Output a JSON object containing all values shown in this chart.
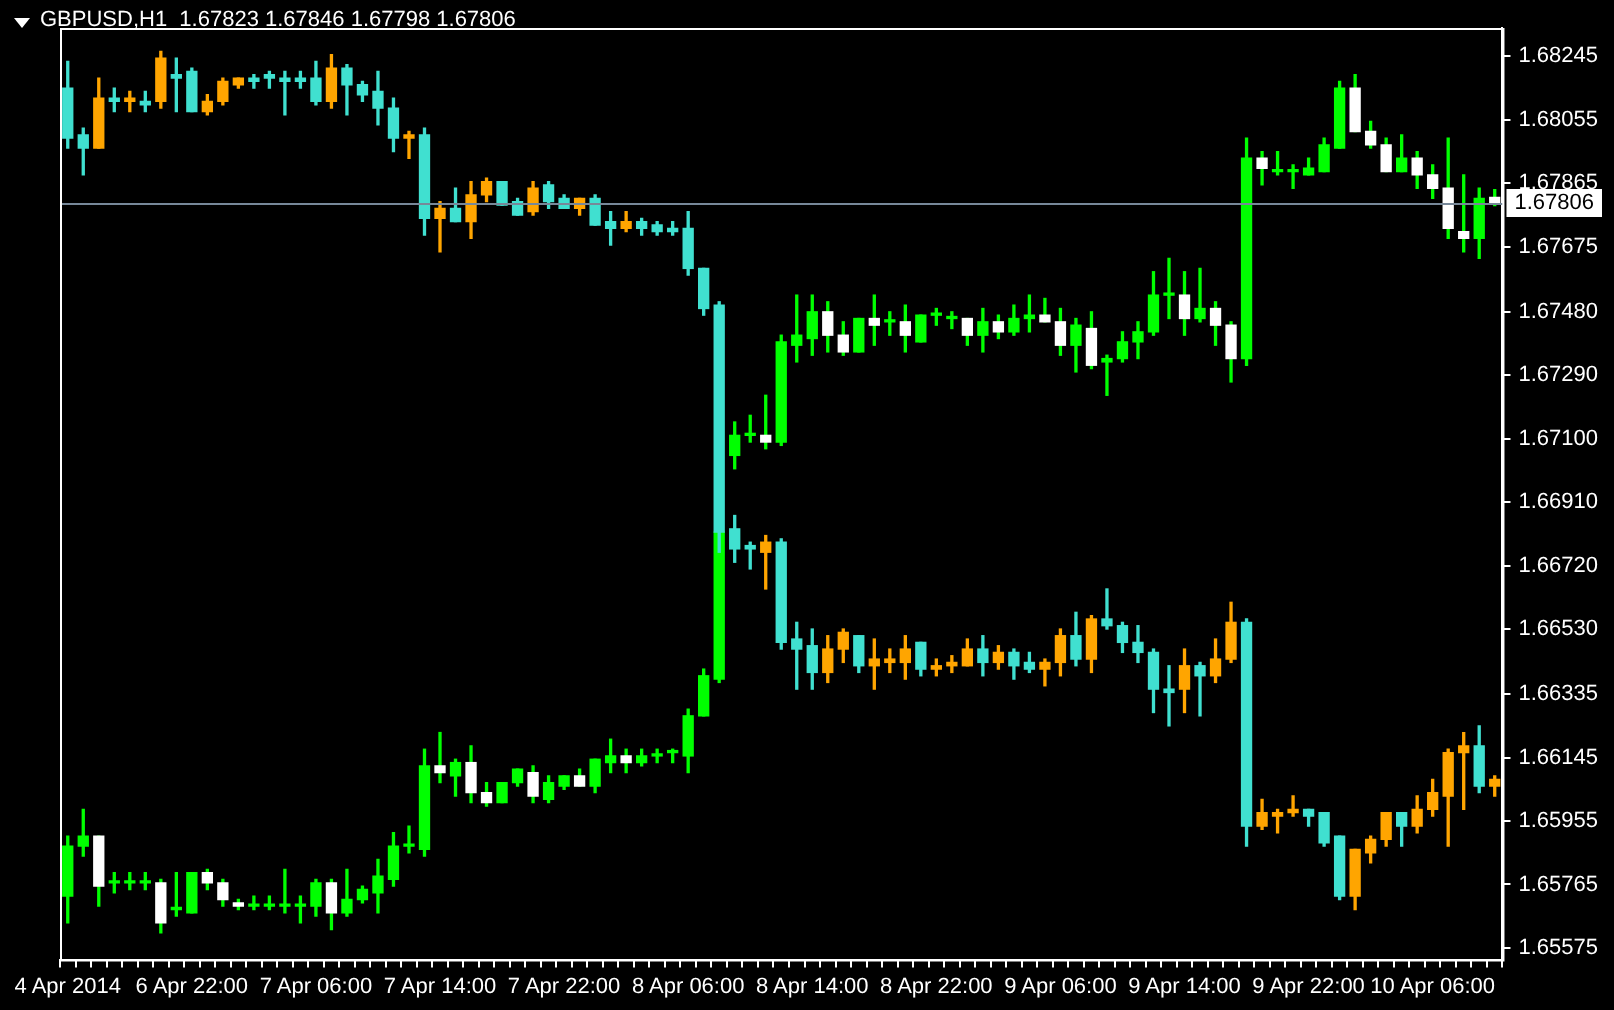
{
  "chart_data": {
    "type": "candlestick",
    "title": "GBPUSD,H1  1.67823 1.67846 1.67798 1.67806",
    "categories": [
      "4 Apr 2014",
      null,
      null,
      null,
      null,
      null,
      null,
      null,
      "6 Apr 22:00",
      null,
      null,
      null,
      null,
      null,
      null,
      null,
      "7 Apr 06:00",
      null,
      null,
      null,
      null,
      null,
      null,
      null,
      "7 Apr 14:00",
      null,
      null,
      null,
      null,
      null,
      null,
      null,
      "7 Apr 22:00",
      null,
      null,
      null,
      null,
      null,
      null,
      null,
      "8 Apr 06:00",
      null,
      null,
      null,
      null,
      null,
      null,
      null,
      "8 Apr 14:00",
      null,
      null,
      null,
      null,
      null,
      null,
      null,
      "8 Apr 22:00",
      null,
      null,
      null,
      null,
      null,
      null,
      null,
      "9 Apr 06:00",
      null,
      null,
      null,
      null,
      null,
      null,
      null,
      "9 Apr 14:00",
      null,
      null,
      null,
      null,
      null,
      null,
      null,
      "9 Apr 22:00",
      null,
      null,
      null,
      null,
      null,
      null,
      null,
      "10 Apr 06:00",
      null,
      null,
      null,
      null
    ],
    "series": [
      {
        "ohlc": [
          [
            1.6815,
            1.6823,
            1.6797,
            1.68
          ],
          [
            1.6801,
            1.6803,
            1.6789,
            1.6797
          ],
          [
            1.6797,
            1.6818,
            1.6797,
            1.6812
          ],
          [
            1.6812,
            1.6815,
            1.6808,
            1.6811
          ],
          [
            1.6811,
            1.6814,
            1.6808,
            1.6812
          ],
          [
            1.6811,
            1.6814,
            1.6808,
            1.681
          ],
          [
            1.6811,
            1.6826,
            1.6809,
            1.6824
          ],
          [
            1.6819,
            1.6824,
            1.6808,
            1.6818
          ],
          [
            1.682,
            1.6821,
            1.6808,
            1.6808
          ],
          [
            1.6808,
            1.6813,
            1.6807,
            1.6811
          ],
          [
            1.6811,
            1.6818,
            1.681,
            1.6817
          ],
          [
            1.6816,
            1.6818,
            1.6815,
            1.6818
          ],
          [
            1.6818,
            1.6819,
            1.6815,
            1.6817
          ],
          [
            1.6819,
            1.682,
            1.6815,
            1.6818
          ],
          [
            1.6818,
            1.682,
            1.6807,
            1.6817
          ],
          [
            1.6818,
            1.682,
            1.6815,
            1.6817
          ],
          [
            1.6818,
            1.6823,
            1.681,
            1.6811
          ],
          [
            1.6811,
            1.6825,
            1.6809,
            1.6821
          ],
          [
            1.6821,
            1.6822,
            1.6807,
            1.6816
          ],
          [
            1.6816,
            1.6817,
            1.6811,
            1.6813
          ],
          [
            1.6814,
            1.682,
            1.6804,
            1.6809
          ],
          [
            1.6809,
            1.6812,
            1.6796,
            1.68
          ],
          [
            1.68,
            1.6802,
            1.6794,
            1.6801
          ],
          [
            1.6801,
            1.6803,
            1.6771,
            1.6776
          ],
          [
            1.6776,
            1.6781,
            1.6766,
            1.6779
          ],
          [
            1.6779,
            1.6785,
            1.6775,
            1.6775
          ],
          [
            1.6775,
            1.6787,
            1.677,
            1.6783
          ],
          [
            1.6783,
            1.6788,
            1.6781,
            1.6787
          ],
          [
            1.6787,
            1.6787,
            1.678,
            1.678
          ],
          [
            1.6781,
            1.6782,
            1.6777,
            1.6777
          ],
          [
            1.6778,
            1.6787,
            1.6777,
            1.6785
          ],
          [
            1.6786,
            1.6787,
            1.6779,
            1.6781
          ],
          [
            1.6782,
            1.6783,
            1.6779,
            1.6779
          ],
          [
            1.6779,
            1.6782,
            1.6777,
            1.6782
          ],
          [
            1.6782,
            1.6783,
            1.6774,
            1.6774
          ],
          [
            1.6775,
            1.6778,
            1.6768,
            1.6773
          ],
          [
            1.6773,
            1.6778,
            1.6772,
            1.6775
          ],
          [
            1.6775,
            1.6776,
            1.6771,
            1.6773
          ],
          [
            1.6774,
            1.6775,
            1.6771,
            1.6772
          ],
          [
            1.6773,
            1.6775,
            1.6771,
            1.6772
          ],
          [
            1.6773,
            1.6778,
            1.6759,
            1.6761
          ],
          [
            1.6761,
            1.6761,
            1.6747,
            1.6749
          ],
          [
            1.675,
            1.6751,
            1.6676,
            1.6682
          ],
          [
            1.6683,
            1.6687,
            1.6673,
            1.6677
          ],
          [
            1.6678,
            1.6679,
            1.6671,
            1.6677
          ],
          [
            1.6676,
            1.6681,
            1.6665,
            1.6679
          ],
          [
            1.6679,
            1.668,
            1.6647,
            1.6649
          ],
          [
            1.665,
            1.6655,
            1.6635,
            1.6647
          ],
          [
            1.6648,
            1.6653,
            1.6635,
            1.664
          ],
          [
            1.664,
            1.6651,
            1.6637,
            1.6647
          ],
          [
            1.6647,
            1.6653,
            1.6643,
            1.6652
          ],
          [
            1.6651,
            1.6651,
            1.664,
            1.6642
          ],
          [
            1.6642,
            1.665,
            1.6635,
            1.6644
          ],
          [
            1.6643,
            1.6647,
            1.664,
            1.6644
          ],
          [
            1.6643,
            1.6651,
            1.6638,
            1.6647
          ],
          [
            1.6649,
            1.6649,
            1.6639,
            1.6641
          ],
          [
            1.6641,
            1.6644,
            1.6639,
            1.6642
          ],
          [
            1.6642,
            1.6645,
            1.664,
            1.6643
          ],
          [
            1.6642,
            1.665,
            1.6642,
            1.6647
          ],
          [
            1.6647,
            1.6651,
            1.6639,
            1.6643
          ],
          [
            1.6643,
            1.6648,
            1.6641,
            1.6646
          ],
          [
            1.6646,
            1.6647,
            1.6638,
            1.6642
          ],
          [
            1.6643,
            1.6646,
            1.664,
            1.6641
          ],
          [
            1.6641,
            1.6644,
            1.6636,
            1.6643
          ],
          [
            1.6643,
            1.6653,
            1.6639,
            1.6651
          ],
          [
            1.6651,
            1.6658,
            1.6642,
            1.6644
          ],
          [
            1.6644,
            1.6657,
            1.664,
            1.6656
          ],
          [
            1.6656,
            1.6665,
            1.6653,
            1.6654
          ],
          [
            1.6654,
            1.6655,
            1.6646,
            1.6649
          ],
          [
            1.6649,
            1.6654,
            1.6643,
            1.6646
          ],
          [
            1.6646,
            1.6647,
            1.6628,
            1.6635
          ],
          [
            1.6635,
            1.6642,
            1.6624,
            1.6634
          ],
          [
            1.6635,
            1.6647,
            1.6628,
            1.6642
          ],
          [
            1.6642,
            1.6643,
            1.6627,
            1.6639
          ],
          [
            1.6639,
            1.665,
            1.6637,
            1.6644
          ],
          [
            1.6644,
            1.6661,
            1.6643,
            1.6655
          ],
          [
            1.6655,
            1.6656,
            1.6588,
            1.6594
          ],
          [
            1.6594,
            1.6602,
            1.6593,
            1.6598
          ],
          [
            1.6597,
            1.6599,
            1.6592,
            1.6598
          ],
          [
            1.6598,
            1.6603,
            1.6597,
            1.6599
          ],
          [
            1.6599,
            1.6599,
            1.6594,
            1.6597
          ],
          [
            1.6598,
            1.6598,
            1.6588,
            1.6589
          ],
          [
            1.6591,
            1.6591,
            1.6572,
            1.6573
          ],
          [
            1.6573,
            1.6587,
            1.6569,
            1.6587
          ],
          [
            1.6586,
            1.6591,
            1.6583,
            1.659
          ],
          [
            1.659,
            1.6598,
            1.6588,
            1.6598
          ],
          [
            1.6598,
            1.6598,
            1.6588,
            1.6594
          ],
          [
            1.6594,
            1.6603,
            1.6592,
            1.6599
          ],
          [
            1.6599,
            1.6608,
            1.6597,
            1.6604
          ],
          [
            1.6603,
            1.6617,
            1.6588,
            1.6616
          ],
          [
            1.6616,
            1.6622,
            1.6599,
            1.6618
          ],
          [
            1.6618,
            1.6624,
            1.6604,
            1.6606
          ],
          [
            1.6606,
            1.6609,
            1.6603,
            1.6608
          ]
        ],
        "colors": [
          "#40e0d0",
          "#40e0d0",
          "#ffa500",
          "#40e0d0",
          "#ffa500",
          "#40e0d0",
          "#ffa500",
          "#40e0d0",
          "#40e0d0",
          "#ffa500",
          "#ffa500",
          "#ffa500",
          "#40e0d0",
          "#40e0d0",
          "#40e0d0",
          "#40e0d0",
          "#40e0d0",
          "#ffa500",
          "#40e0d0",
          "#40e0d0",
          "#40e0d0",
          "#40e0d0",
          "#ffa500",
          "#40e0d0",
          "#ffa500",
          "#40e0d0",
          "#ffa500",
          "#ffa500",
          "#40e0d0",
          "#40e0d0",
          "#ffa500",
          "#40e0d0",
          "#40e0d0",
          "#ffa500",
          "#40e0d0",
          "#40e0d0",
          "#ffa500",
          "#40e0d0",
          "#40e0d0",
          "#40e0d0",
          "#40e0d0",
          "#40e0d0",
          "#40e0d0",
          "#40e0d0",
          "#40e0d0",
          "#ffa500",
          "#40e0d0",
          "#40e0d0",
          "#40e0d0",
          "#ffa500",
          "#ffa500",
          "#40e0d0",
          "#ffa500",
          "#ffa500",
          "#ffa500",
          "#40e0d0",
          "#ffa500",
          "#ffa500",
          "#ffa500",
          "#40e0d0",
          "#ffa500",
          "#40e0d0",
          "#40e0d0",
          "#ffa500",
          "#ffa500",
          "#40e0d0",
          "#ffa500",
          "#40e0d0",
          "#40e0d0",
          "#40e0d0",
          "#40e0d0",
          "#40e0d0",
          "#ffa500",
          "#40e0d0",
          "#ffa500",
          "#ffa500",
          "#40e0d0",
          "#ffa500",
          "#ffa500",
          "#ffa500",
          "#40e0d0",
          "#40e0d0",
          "#40e0d0",
          "#ffa500",
          "#ffa500",
          "#ffa500",
          "#40e0d0",
          "#ffa500",
          "#ffa500",
          "#ffa500",
          "#ffa500",
          "#40e0d0",
          "#ffa500"
        ]
      },
      {
        "color": "#00ff00",
        "ohlc": [
          [
            1.6573,
            1.6591,
            1.6565,
            1.6588
          ],
          [
            1.6588,
            1.6599,
            1.6585,
            1.6591
          ],
          [
            1.6591,
            1.6591,
            1.657,
            1.6576
          ],
          [
            1.6577,
            1.658,
            1.6574,
            1.6577
          ],
          [
            1.6577,
            1.658,
            1.6575,
            1.6577
          ],
          [
            1.6577,
            1.658,
            1.6575,
            1.6577
          ],
          [
            1.6577,
            1.6578,
            1.6562,
            1.6565
          ],
          [
            1.6569,
            1.658,
            1.6567,
            1.6569
          ],
          [
            1.6568,
            1.658,
            1.6568,
            1.658
          ],
          [
            1.658,
            1.6581,
            1.6575,
            1.6577
          ],
          [
            1.6577,
            1.6578,
            1.657,
            1.6572
          ],
          [
            1.6571,
            1.6572,
            1.6569,
            1.657
          ],
          [
            1.657,
            1.6573,
            1.6569,
            1.657
          ],
          [
            1.657,
            1.6573,
            1.6569,
            1.657
          ],
          [
            1.657,
            1.6581,
            1.6568,
            1.657
          ],
          [
            1.657,
            1.6573,
            1.6565,
            1.657
          ],
          [
            1.657,
            1.6578,
            1.6567,
            1.6577
          ],
          [
            1.6577,
            1.6578,
            1.6563,
            1.6568
          ],
          [
            1.6568,
            1.6581,
            1.6567,
            1.6572
          ],
          [
            1.6572,
            1.6576,
            1.6571,
            1.6575
          ],
          [
            1.6574,
            1.6584,
            1.6568,
            1.6579
          ],
          [
            1.6578,
            1.6592,
            1.6576,
            1.6588
          ],
          [
            1.6588,
            1.6594,
            1.6586,
            1.6588
          ],
          [
            1.6587,
            1.6617,
            1.6585,
            1.6612
          ],
          [
            1.6612,
            1.6622,
            1.6607,
            1.661
          ],
          [
            1.6609,
            1.6614,
            1.6603,
            1.6613
          ],
          [
            1.6613,
            1.6618,
            1.6601,
            1.6604
          ],
          [
            1.6604,
            1.6607,
            1.66,
            1.6601
          ],
          [
            1.6601,
            1.6607,
            1.6601,
            1.6607
          ],
          [
            1.6607,
            1.6611,
            1.6606,
            1.6611
          ],
          [
            1.661,
            1.6612,
            1.6601,
            1.6603
          ],
          [
            1.6602,
            1.6609,
            1.6601,
            1.6607
          ],
          [
            1.6606,
            1.6609,
            1.6605,
            1.6609
          ],
          [
            1.6609,
            1.6611,
            1.6606,
            1.6606
          ],
          [
            1.6606,
            1.6614,
            1.6604,
            1.6614
          ],
          [
            1.6613,
            1.662,
            1.661,
            1.6615
          ],
          [
            1.6615,
            1.6617,
            1.661,
            1.6613
          ],
          [
            1.6613,
            1.6617,
            1.6612,
            1.6615
          ],
          [
            1.6615,
            1.6617,
            1.6613,
            1.6615
          ],
          [
            1.6616,
            1.6617,
            1.6613,
            1.6616
          ],
          [
            1.6615,
            1.6629,
            1.661,
            1.6627
          ],
          [
            1.6627,
            1.6641,
            1.6627,
            1.6639
          ],
          [
            1.6638,
            1.6682,
            1.6637,
            1.6682
          ],
          [
            1.6705,
            1.6715,
            1.6701,
            1.6711
          ],
          [
            1.6711,
            1.6717,
            1.6709,
            1.6711
          ],
          [
            1.6711,
            1.6723,
            1.6707,
            1.6709
          ],
          [
            1.6709,
            1.6741,
            1.6708,
            1.6739
          ],
          [
            1.6738,
            1.6753,
            1.6733,
            1.6741
          ],
          [
            1.674,
            1.6753,
            1.6735,
            1.6748
          ],
          [
            1.6748,
            1.6751,
            1.6736,
            1.6741
          ],
          [
            1.6741,
            1.6745,
            1.6735,
            1.6736
          ],
          [
            1.6736,
            1.6746,
            1.6736,
            1.6746
          ],
          [
            1.6746,
            1.6753,
            1.6738,
            1.6744
          ],
          [
            1.6745,
            1.6748,
            1.6741,
            1.6745
          ],
          [
            1.6745,
            1.675,
            1.6736,
            1.6741
          ],
          [
            1.6739,
            1.6747,
            1.6739,
            1.6747
          ],
          [
            1.6747,
            1.6749,
            1.6744,
            1.6747
          ],
          [
            1.6746,
            1.6748,
            1.6743,
            1.6746
          ],
          [
            1.6746,
            1.6746,
            1.6738,
            1.6741
          ],
          [
            1.6741,
            1.6749,
            1.6736,
            1.6745
          ],
          [
            1.6745,
            1.6747,
            1.674,
            1.6742
          ],
          [
            1.6742,
            1.675,
            1.6741,
            1.6746
          ],
          [
            1.6746,
            1.6753,
            1.6742,
            1.6747
          ],
          [
            1.6747,
            1.6752,
            1.6745,
            1.6745
          ],
          [
            1.6745,
            1.6749,
            1.6735,
            1.6738
          ],
          [
            1.6738,
            1.6746,
            1.673,
            1.6744
          ],
          [
            1.6743,
            1.6748,
            1.6731,
            1.6732
          ],
          [
            1.6733,
            1.6735,
            1.6723,
            1.6734
          ],
          [
            1.6734,
            1.6742,
            1.6733,
            1.6739
          ],
          [
            1.6739,
            1.6745,
            1.6734,
            1.6742
          ],
          [
            1.6742,
            1.676,
            1.6741,
            1.6753
          ],
          [
            1.6753,
            1.6764,
            1.6746,
            1.6753
          ],
          [
            1.6753,
            1.676,
            1.6741,
            1.6746
          ],
          [
            1.6746,
            1.6761,
            1.6745,
            1.6749
          ],
          [
            1.6749,
            1.6751,
            1.6738,
            1.6744
          ],
          [
            1.6744,
            1.6745,
            1.6727,
            1.6734
          ],
          [
            1.6734,
            1.68,
            1.6732,
            1.6794
          ],
          [
            1.6794,
            1.6796,
            1.6786,
            1.6791
          ],
          [
            1.679,
            1.6796,
            1.6789,
            1.679
          ],
          [
            1.679,
            1.6792,
            1.6785,
            1.679
          ],
          [
            1.6789,
            1.6794,
            1.6789,
            1.6791
          ],
          [
            1.679,
            1.68,
            1.679,
            1.6798
          ],
          [
            1.6797,
            1.6817,
            1.6797,
            1.6815
          ],
          [
            1.6815,
            1.6819,
            1.6802,
            1.6802
          ],
          [
            1.6802,
            1.6805,
            1.6797,
            1.6798
          ],
          [
            1.6798,
            1.68,
            1.679,
            1.679
          ],
          [
            1.679,
            1.6801,
            1.679,
            1.6794
          ],
          [
            1.6794,
            1.6796,
            1.6785,
            1.6789
          ],
          [
            1.6789,
            1.6792,
            1.6782,
            1.6785
          ],
          [
            1.6785,
            1.68,
            1.677,
            1.6773
          ],
          [
            1.6772,
            1.6789,
            1.6766,
            1.677
          ],
          [
            1.677,
            1.6785,
            1.6764,
            1.6782
          ],
          [
            1.67823,
            1.67846,
            1.67798,
            1.67806
          ]
        ],
        "colors": [
          "#00ff00",
          "#00ff00",
          "#ffffff",
          "#00ff00",
          "#00ff00",
          "#00ff00",
          "#ffffff",
          "#00ff00",
          "#00ff00",
          "#ffffff",
          "#ffffff",
          "#ffffff",
          "#00ff00",
          "#00ff00",
          "#00ff00",
          "#00ff00",
          "#00ff00",
          "#ffffff",
          "#00ff00",
          "#00ff00",
          "#00ff00",
          "#00ff00",
          "#00ff00",
          "#00ff00",
          "#ffffff",
          "#00ff00",
          "#ffffff",
          "#ffffff",
          "#00ff00",
          "#00ff00",
          "#ffffff",
          "#00ff00",
          "#00ff00",
          "#ffffff",
          "#00ff00",
          "#00ff00",
          "#ffffff",
          "#00ff00",
          "#00ff00",
          "#00ff00",
          "#00ff00",
          "#00ff00",
          "#00ff00",
          "#00ff00",
          "#00ff00",
          "#ffffff",
          "#00ff00",
          "#00ff00",
          "#00ff00",
          "#ffffff",
          "#ffffff",
          "#00ff00",
          "#ffffff",
          "#00ff00",
          "#ffffff",
          "#00ff00",
          "#00ff00",
          "#00ff00",
          "#ffffff",
          "#00ff00",
          "#ffffff",
          "#00ff00",
          "#00ff00",
          "#ffffff",
          "#ffffff",
          "#00ff00",
          "#ffffff",
          "#00ff00",
          "#00ff00",
          "#00ff00",
          "#00ff00",
          "#00ff00",
          "#ffffff",
          "#00ff00",
          "#ffffff",
          "#ffffff",
          "#00ff00",
          "#ffffff",
          "#00ff00",
          "#00ff00",
          "#00ff00",
          "#00ff00",
          "#00ff00",
          "#ffffff",
          "#ffffff",
          "#ffffff",
          "#00ff00",
          "#ffffff",
          "#ffffff",
          "#ffffff",
          "#ffffff",
          "#00ff00",
          "#ffffff"
        ]
      }
    ],
    "ylim": [
      1.6554,
      1.6833
    ],
    "yticks": [
      1.68245,
      1.68055,
      1.67865,
      1.67675,
      {
        "value": 1.6748,
        "label": "1.67480"
      },
      {
        "value": 1.6729,
        "label": "1.67290"
      },
      {
        "value": 1.671,
        "label": "1.67100"
      },
      {
        "value": 1.6691,
        "label": "1.66910"
      },
      {
        "value": 1.6672,
        "label": "1.66720"
      },
      {
        "value": 1.6653,
        "label": "1.66530"
      },
      1.66335,
      1.66145,
      1.65955,
      1.65765,
      1.65575
    ],
    "ref_lines": [
      {
        "axis": "y",
        "value": 1.67806,
        "label": "1.67806",
        "color": "#778899"
      }
    ]
  }
}
